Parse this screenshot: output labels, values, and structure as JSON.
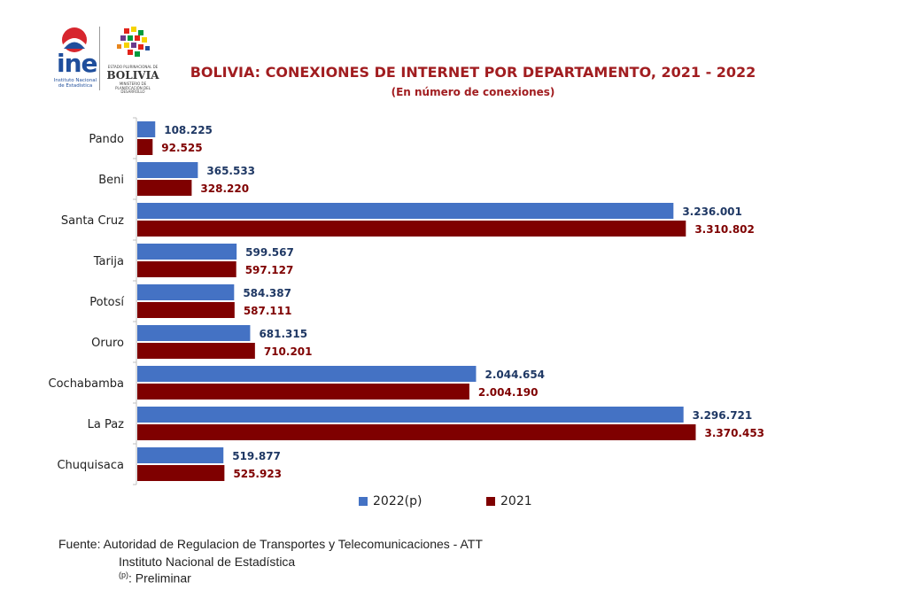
{
  "logos": {
    "ine": {
      "word": "ine",
      "sub_line1": "Instituto Nacional",
      "sub_line2": "de Estadística"
    },
    "bolivia": {
      "small_line": "ESTADO PLURINACIONAL DE",
      "word": "BOLIVIA",
      "sub_line1": "MINISTERIO DE",
      "sub_line2": "PLANIFICACIÓN DEL DESARROLLO"
    }
  },
  "colors": {
    "series_2022": "#4472c4",
    "series_2021": "#7f0000",
    "title": "#a11d20",
    "label_2022": "#1f3864",
    "label_2021": "#7f0000"
  },
  "chart_data": {
    "type": "bar",
    "orientation": "horizontal",
    "title": "BOLIVIA: CONEXIONES DE INTERNET POR DEPARTAMENTO, 2021 - 2022",
    "subtitle": "(En número de conexiones)",
    "categories": [
      "Pando",
      "Beni",
      "Santa Cruz",
      "Tarija",
      "Potosí",
      "Oruro",
      "Cochabamba",
      "La Paz",
      "Chuquisaca"
    ],
    "series": [
      {
        "name": "2022(p)",
        "values": [
          108225,
          365533,
          3236001,
          599567,
          584387,
          681315,
          2044654,
          3296721,
          519877
        ],
        "labels": [
          "108.225",
          "365.533",
          "3.236.001",
          "599.567",
          "584.387",
          "681.315",
          "2.044.654",
          "3.296.721",
          "519.877"
        ]
      },
      {
        "name": "2021",
        "values": [
          92525,
          328220,
          3310802,
          597127,
          587111,
          710201,
          2004190,
          3370453,
          525923
        ],
        "labels": [
          "92.525",
          "328.220",
          "3.310.802",
          "597.127",
          "587.111",
          "710.201",
          "2.004.190",
          "3.370.453",
          "525.923"
        ]
      }
    ],
    "xlim": [
      0,
      3400000
    ],
    "grid": false,
    "legend": "bottom"
  },
  "footnotes": {
    "source": "Fuente: Autoridad de Regulacion de Transportes y Telecomunicaciones - ATT",
    "source2": "Instituto Nacional de Estadística",
    "prelim_mark": "(p)",
    "prelim_text": ": Preliminar"
  }
}
